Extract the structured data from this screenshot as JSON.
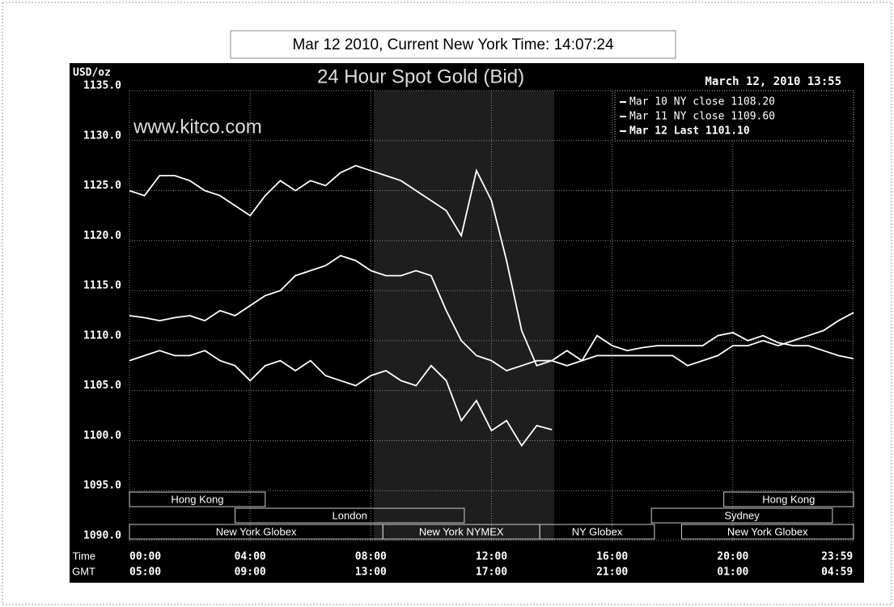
{
  "header": {
    "title": "Mar 12 2010, Current New York Time: 14:07:24"
  },
  "chart_data": {
    "type": "line",
    "title": "24 Hour Spot Gold (Bid)",
    "ylabel": "USD/oz",
    "timestamp": "March 12, 2010 13:55",
    "watermark": "www.kitco.com",
    "xlabel": "NY Time",
    "x2label": "GMT",
    "x": [
      0,
      0.5,
      1,
      1.5,
      2,
      2.5,
      3,
      3.5,
      4,
      4.5,
      5,
      5.5,
      6,
      6.5,
      7,
      7.5,
      8,
      8.5,
      9,
      9.5,
      10,
      10.5,
      11,
      11.5,
      12,
      12.5,
      13,
      13.5,
      14,
      14.5,
      15,
      15.5,
      16,
      16.5,
      17,
      17.5,
      18,
      18.5,
      19,
      19.5,
      20,
      20.5,
      21,
      21.5,
      22,
      22.5,
      23,
      23.5,
      24
    ],
    "series": [
      {
        "name": "Mar 10 NY close 1108.20",
        "color": "#ffffff",
        "values": [
          1125,
          1124.5,
          1126.5,
          1126.5,
          1126,
          1125,
          1124.5,
          1123.5,
          1122.5,
          1124.5,
          1126,
          1125,
          1126,
          1125.5,
          1126.8,
          1127.5,
          1127,
          1126.5,
          1126,
          1125,
          1124,
          1123,
          1120.5,
          1127,
          1124,
          1118,
          1111,
          1107.5,
          1108,
          1109,
          1108,
          1110.5,
          1109.5,
          1109,
          1109.3,
          1109.5,
          1109.5,
          1109.5,
          1109.5,
          1110.5,
          1110.8,
          1110,
          1110.5,
          1109.8,
          1109.5,
          1109.5,
          1109,
          1108.5,
          1108.2
        ]
      },
      {
        "name": "Mar 11 NY close 1109.60",
        "color": "#ffffff",
        "values": [
          1112.5,
          1112.3,
          1112,
          1112.3,
          1112.5,
          1112,
          1113,
          1112.5,
          1113.5,
          1114.5,
          1115,
          1116.5,
          1117,
          1117.5,
          1118.5,
          1118,
          1117,
          1116.5,
          1116.5,
          1117,
          1116.5,
          1113,
          1110,
          1108.5,
          1108,
          1107,
          1107.5,
          1108,
          1108,
          1107.5,
          1108,
          1108.5,
          1108.5,
          1108.5,
          1108.5,
          1108.5,
          1108.5,
          1107.5,
          1108,
          1108.5,
          1109.5,
          1109.5,
          1110,
          1109.5,
          1110,
          1110.5,
          1111,
          1112,
          1112.8
        ]
      },
      {
        "name": "Mar 12 Last 1101.10",
        "color": "#ffffff",
        "values": [
          1108,
          1108.5,
          1109,
          1108.5,
          1108.5,
          1109,
          1108,
          1107.5,
          1106,
          1107.5,
          1108,
          1107,
          1108,
          1106.5,
          1106,
          1105.5,
          1106.5,
          1107,
          1106,
          1105.5,
          1107.5,
          1106,
          1102,
          1104,
          1101,
          1102,
          1099.5,
          1101.5,
          1101.1,
          null,
          null,
          null,
          null,
          null,
          null,
          null,
          null,
          null,
          null,
          null,
          null,
          null,
          null,
          null,
          null,
          null,
          null,
          null,
          null
        ]
      }
    ],
    "xlim": [
      0,
      24
    ],
    "xticks": [
      {
        "value": 0,
        "label": "00:00"
      },
      {
        "value": 4,
        "label": "04:00"
      },
      {
        "value": 8,
        "label": "08:00"
      },
      {
        "value": 12,
        "label": "12:00"
      },
      {
        "value": 16,
        "label": "16:00"
      },
      {
        "value": 20,
        "label": "20:00"
      },
      {
        "value": 23.98,
        "label": "23:59"
      }
    ],
    "x2ticks": [
      {
        "value": 0,
        "label": "05:00"
      },
      {
        "value": 4,
        "label": "09:00"
      },
      {
        "value": 8,
        "label": "13:00"
      },
      {
        "value": 12,
        "label": "17:00"
      },
      {
        "value": 16,
        "label": "21:00"
      },
      {
        "value": 20,
        "label": "01:00"
      },
      {
        "value": 23.98,
        "label": "04:59"
      }
    ],
    "ylim": [
      1090,
      1135
    ],
    "yticks": [
      {
        "value": 1090,
        "label": "1090.0"
      },
      {
        "value": 1095,
        "label": "1095.0"
      },
      {
        "value": 1100,
        "label": "1100.0"
      },
      {
        "value": 1105,
        "label": "1105.0"
      },
      {
        "value": 1110,
        "label": "1110.0"
      },
      {
        "value": 1115,
        "label": "1115.0"
      },
      {
        "value": 1120,
        "label": "1120.0"
      },
      {
        "value": 1125,
        "label": "1125.0"
      },
      {
        "value": 1130,
        "label": "1130.0"
      },
      {
        "value": 1135,
        "label": "1135.0"
      }
    ],
    "grid": true,
    "legend": "upper right",
    "sessions": [
      {
        "name": "Hong Kong",
        "start": 0,
        "end": 4.5,
        "row": 0
      },
      {
        "name": "Hong Kong",
        "start": 19.7,
        "end": 24,
        "row": 0
      },
      {
        "name": "London",
        "start": 3.5,
        "end": 11.1,
        "row": 1
      },
      {
        "name": "Sydney",
        "start": 17.3,
        "end": 23.3,
        "row": 1
      },
      {
        "name": "New York Globex",
        "start": 0,
        "end": 8.4,
        "row": 2
      },
      {
        "name": "New York NYMEX",
        "start": 8.4,
        "end": 13.6,
        "row": 2
      },
      {
        "name": "NY Globex",
        "start": 13.6,
        "end": 17.4,
        "row": 2
      },
      {
        "name": "New York Globex",
        "start": 18.3,
        "end": 24,
        "row": 2
      }
    ]
  }
}
